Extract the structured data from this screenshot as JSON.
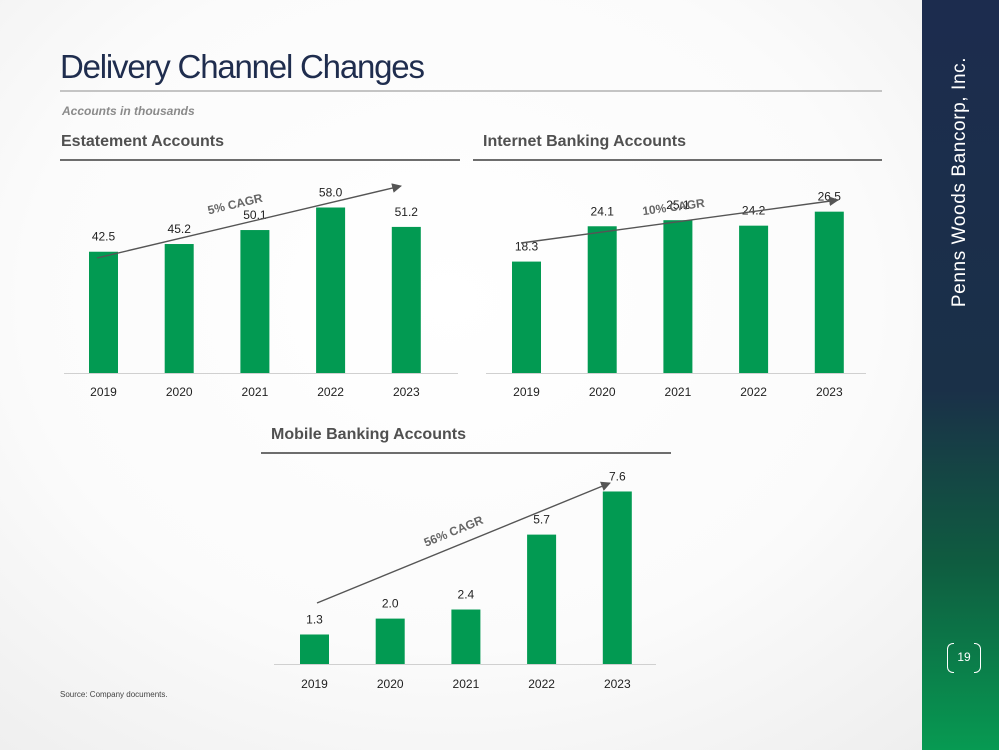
{
  "page": {
    "title": "Delivery Channel Changes",
    "subtitle": "Accounts in thousands",
    "source": "Source: Company documents.",
    "company": "Penns Woods Bancorp, Inc.",
    "page_number": "19",
    "colors": {
      "bar": "#029a52",
      "title": "#1f2d4e",
      "sidebar_top": "#1c2c4e",
      "sidebar_bottom": "#079a52",
      "arrow": "#555555"
    }
  },
  "chart_data": [
    {
      "id": "estatement",
      "type": "bar",
      "title": "Estatement Accounts",
      "categories": [
        "2019",
        "2020",
        "2021",
        "2022",
        "2023"
      ],
      "values": [
        42.5,
        45.2,
        50.1,
        58.0,
        51.2
      ],
      "labels": [
        "42.5",
        "45.2",
        "50.1",
        "58.0",
        "51.2"
      ],
      "annotation": "5% CAGR",
      "ylim": [
        0,
        75
      ]
    },
    {
      "id": "internet",
      "type": "bar",
      "title": "Internet Banking Accounts",
      "categories": [
        "2019",
        "2020",
        "2021",
        "2022",
        "2023"
      ],
      "values": [
        18.3,
        24.1,
        25.1,
        24.2,
        26.5
      ],
      "labels": [
        "18.3",
        "24.1",
        "25.1",
        "24.2",
        "26.5"
      ],
      "annotation": "10% CAGR",
      "ylim": [
        0,
        34
      ]
    },
    {
      "id": "mobile",
      "type": "bar",
      "title": "Mobile Banking Accounts",
      "categories": [
        "2019",
        "2020",
        "2021",
        "2022",
        "2023"
      ],
      "values": [
        1.3,
        2.0,
        2.4,
        5.7,
        7.6
      ],
      "labels": [
        "1.3",
        "2.0",
        "2.4",
        "5.7",
        "7.6"
      ],
      "annotation": "56% CAGR",
      "ylim": [
        0,
        10
      ]
    }
  ]
}
